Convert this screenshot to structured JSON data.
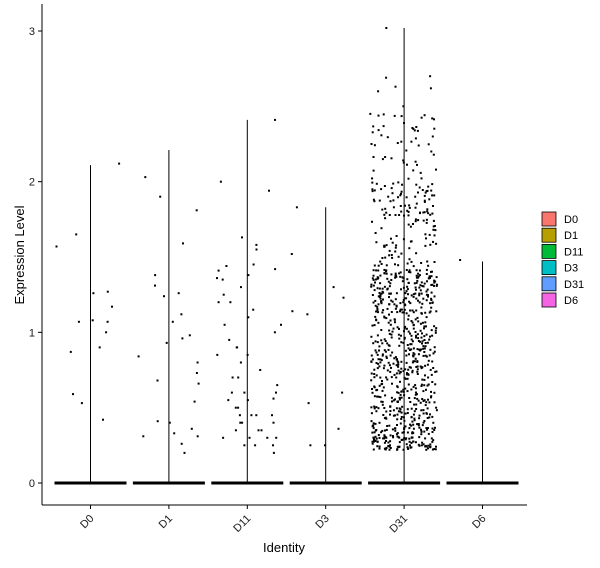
{
  "chart_data": {
    "type": "violin",
    "xlabel": "Identity",
    "ylabel": "Expression Level",
    "categories": [
      "D0",
      "D1",
      "D11",
      "D3",
      "D31",
      "D6"
    ],
    "yticks": [
      0,
      1,
      2,
      3
    ],
    "ylim": [
      -0.17,
      3.17
    ],
    "grid": false,
    "legend": {
      "position": "right",
      "items": [
        {
          "label": "D0",
          "color": "#F8766D"
        },
        {
          "label": "D1",
          "color": "#B79F00"
        },
        {
          "label": "D11",
          "color": "#00BA38"
        },
        {
          "label": "D3",
          "color": "#00BFC4"
        },
        {
          "label": "D31",
          "color": "#619CFF"
        },
        {
          "label": "D6",
          "color": "#F564E3"
        }
      ]
    },
    "groups": [
      {
        "name": "D0",
        "max": 2.11,
        "points": [
          1.57,
          2.12,
          1.65,
          0.87,
          1.0,
          1.08,
          1.07,
          1.07,
          1.27,
          1.26,
          0.42,
          0.9,
          1.17,
          0.59,
          0.53
        ]
      },
      {
        "name": "D1",
        "max": 2.21,
        "points": [
          1.59,
          0.96,
          0.84,
          1.12,
          0.93,
          0.8,
          0.98,
          0.31,
          0.4,
          0.31,
          0.26,
          1.26,
          0.33,
          0.73,
          1.81,
          1.9,
          0.41,
          0.36,
          0.68,
          2.03,
          1.38,
          1.24,
          1.31,
          0.66,
          1.07,
          0.2,
          0.54
        ]
      },
      {
        "name": "D11",
        "max": 2.41,
        "points": [
          0.85,
          0.6,
          0.45,
          0.55,
          1.63,
          1.44,
          1.42,
          1.36,
          0.7,
          0.9,
          0.35,
          0.3,
          1.1,
          1.05,
          0.8,
          0.7,
          0.5,
          0.4,
          0.35,
          0.3,
          0.25,
          0.95,
          1.0,
          0.6,
          0.45,
          1.55,
          1.58,
          1.38,
          0.85,
          0.75,
          0.65,
          0.4,
          0.35,
          1.2,
          1.15,
          0.9,
          0.5,
          0.45,
          0.3,
          0.25,
          2.0,
          1.94,
          1.41,
          1.3,
          1.25,
          1.2,
          1.05,
          0.55,
          0.45,
          0.3,
          0.25,
          1.45,
          1.35,
          0.6,
          0.56,
          0.2,
          0.4,
          2.41
        ]
      },
      {
        "name": "D3",
        "max": 1.83,
        "points": [
          1.23,
          0.25,
          1.14,
          0.53,
          1.83,
          1.52,
          1.3,
          1.12,
          0.6,
          0.25,
          0.36
        ]
      },
      {
        "name": "D31",
        "max": 3.02,
        "dense": true,
        "points": [
          3.02,
          2.7,
          2.69,
          2.63,
          2.62,
          2.6,
          2.5,
          2.45,
          2.42,
          2.35,
          2.3,
          2.25,
          2.2,
          2.15,
          2.08,
          2.02,
          1.98,
          1.9,
          1.82,
          1.78
        ]
      },
      {
        "name": "D6",
        "max": 1.47,
        "points": [
          1.48
        ]
      }
    ]
  }
}
